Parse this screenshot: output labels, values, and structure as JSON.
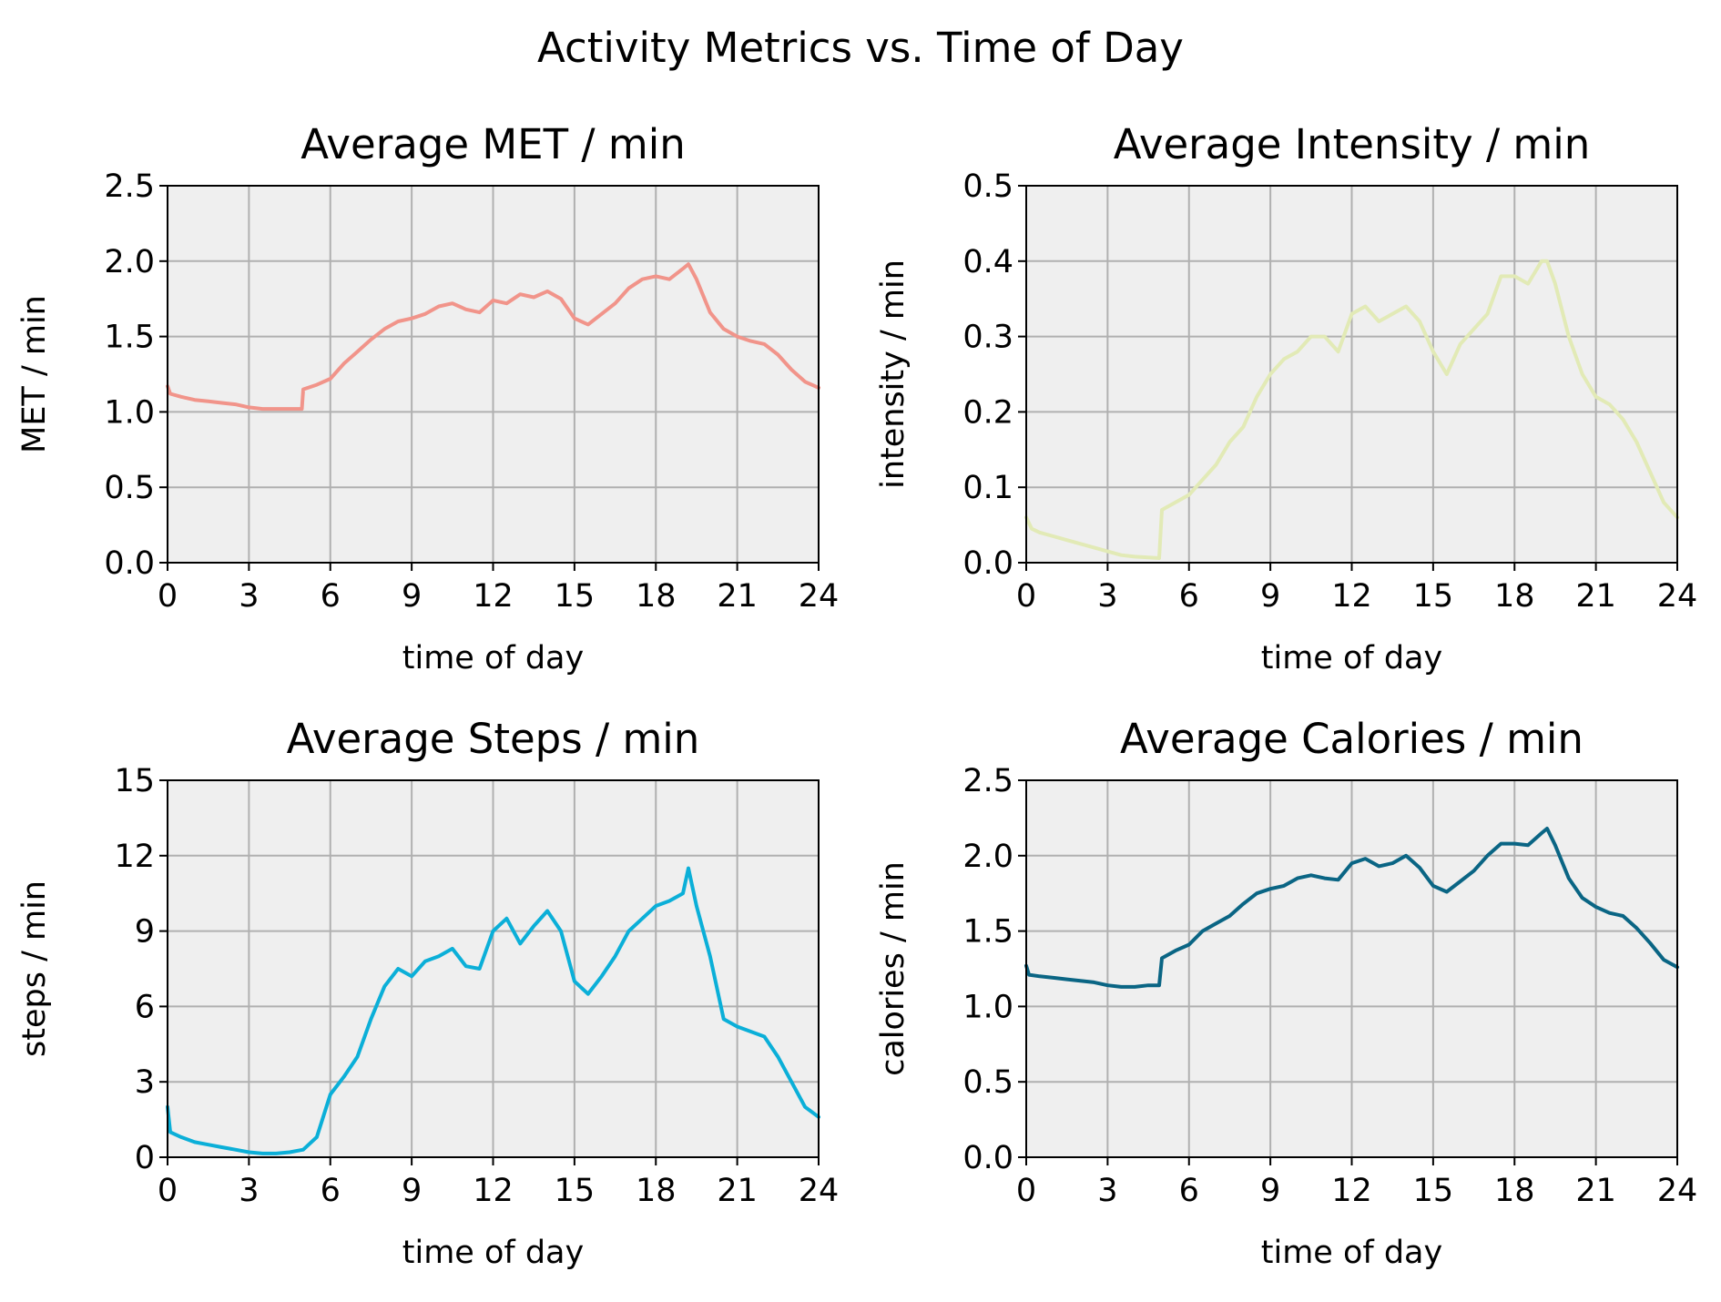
{
  "figure": {
    "suptitle": "Activity Metrics vs. Time of Day"
  },
  "chart_data": [
    {
      "type": "line",
      "title": "Average MET / min",
      "xlabel": "time of day",
      "ylabel": "MET / min",
      "xlim": [
        0,
        24
      ],
      "ylim": [
        0,
        2.5
      ],
      "xticks": [
        "0",
        "3",
        "6",
        "9",
        "12",
        "15",
        "18",
        "21",
        "24"
      ],
      "yticks": [
        "0.0",
        "0.5",
        "1.0",
        "1.5",
        "2.0",
        "2.5"
      ],
      "grid": true,
      "background": "#efefef",
      "color": "#f1948a",
      "series": [
        {
          "x": [
            0,
            0.1,
            0.5,
            1,
            1.5,
            2,
            2.5,
            3,
            3.5,
            4,
            4.5,
            4.95,
            5.0,
            5.5,
            6,
            6.5,
            7,
            7.5,
            8,
            8.5,
            9,
            9.5,
            10,
            10.5,
            11,
            11.5,
            12,
            12.5,
            13,
            13.5,
            14,
            14.5,
            15,
            15.5,
            16,
            16.5,
            17,
            17.5,
            18,
            18.5,
            19,
            19.2,
            19.5,
            20,
            20.5,
            21,
            21.5,
            22,
            22.5,
            23,
            23.5,
            24
          ],
          "y": [
            1.17,
            1.12,
            1.1,
            1.08,
            1.07,
            1.06,
            1.05,
            1.03,
            1.02,
            1.02,
            1.02,
            1.02,
            1.15,
            1.18,
            1.22,
            1.32,
            1.4,
            1.48,
            1.55,
            1.6,
            1.62,
            1.65,
            1.7,
            1.72,
            1.68,
            1.66,
            1.74,
            1.72,
            1.78,
            1.76,
            1.8,
            1.75,
            1.62,
            1.58,
            1.65,
            1.72,
            1.82,
            1.88,
            1.9,
            1.88,
            1.95,
            1.98,
            1.88,
            1.66,
            1.55,
            1.5,
            1.47,
            1.45,
            1.38,
            1.28,
            1.2,
            1.16
          ]
        }
      ]
    },
    {
      "type": "line",
      "title": "Average Intensity / min",
      "xlabel": "time of day",
      "ylabel": "intensity / min",
      "xlim": [
        0,
        24
      ],
      "ylim": [
        0,
        0.5
      ],
      "xticks": [
        "0",
        "3",
        "6",
        "9",
        "12",
        "15",
        "18",
        "21",
        "24"
      ],
      "yticks": [
        "0.0",
        "0.1",
        "0.2",
        "0.3",
        "0.4",
        "0.5"
      ],
      "grid": true,
      "background": "#efefef",
      "color": "#e2eab6",
      "series": [
        {
          "x": [
            0,
            0.2,
            0.5,
            1,
            1.5,
            2,
            2.5,
            3,
            3.5,
            4,
            4.5,
            4.9,
            5.0,
            5.5,
            6,
            6.5,
            7,
            7.5,
            8,
            8.5,
            9,
            9.5,
            10,
            10.5,
            11,
            11.5,
            12,
            12.5,
            13,
            13.5,
            14,
            14.5,
            15,
            15.5,
            16,
            16.5,
            17,
            17.5,
            18,
            18.5,
            19,
            19.2,
            19.5,
            20,
            20.5,
            21,
            21.5,
            22,
            22.5,
            23,
            23.5,
            24
          ],
          "y": [
            0.06,
            0.045,
            0.04,
            0.035,
            0.03,
            0.025,
            0.02,
            0.015,
            0.01,
            0.008,
            0.007,
            0.006,
            0.07,
            0.08,
            0.09,
            0.11,
            0.13,
            0.16,
            0.18,
            0.22,
            0.25,
            0.27,
            0.28,
            0.3,
            0.3,
            0.28,
            0.33,
            0.34,
            0.32,
            0.33,
            0.34,
            0.32,
            0.28,
            0.25,
            0.29,
            0.31,
            0.33,
            0.38,
            0.38,
            0.37,
            0.4,
            0.4,
            0.37,
            0.3,
            0.25,
            0.22,
            0.21,
            0.19,
            0.16,
            0.12,
            0.08,
            0.06
          ]
        }
      ]
    },
    {
      "type": "line",
      "title": "Average Steps / min",
      "xlabel": "time of day",
      "ylabel": "steps / min",
      "xlim": [
        0,
        24
      ],
      "ylim": [
        0,
        15
      ],
      "xticks": [
        "0",
        "3",
        "6",
        "9",
        "12",
        "15",
        "18",
        "21",
        "24"
      ],
      "yticks": [
        "0",
        "3",
        "6",
        "9",
        "12",
        "15"
      ],
      "grid": true,
      "background": "#efefef",
      "color": "#0bafd8",
      "series": [
        {
          "x": [
            0,
            0.1,
            0.5,
            1,
            1.5,
            2,
            2.5,
            3,
            3.5,
            4,
            4.5,
            5,
            5.5,
            6,
            6.5,
            7,
            7.5,
            8,
            8.5,
            9,
            9.5,
            10,
            10.5,
            11,
            11.5,
            12,
            12.5,
            13,
            13.5,
            14,
            14.5,
            15,
            15.5,
            16,
            16.5,
            17,
            17.5,
            18,
            18.5,
            19,
            19.2,
            19.5,
            20,
            20.5,
            21,
            21.5,
            22,
            22.5,
            23,
            23.5,
            24
          ],
          "y": [
            2.0,
            1.0,
            0.8,
            0.6,
            0.5,
            0.4,
            0.3,
            0.2,
            0.15,
            0.15,
            0.2,
            0.3,
            0.8,
            2.5,
            3.2,
            4.0,
            5.5,
            6.8,
            7.5,
            7.2,
            7.8,
            8.0,
            8.3,
            7.6,
            7.5,
            9.0,
            9.5,
            8.5,
            9.2,
            9.8,
            9.0,
            7.0,
            6.5,
            7.2,
            8.0,
            9.0,
            9.5,
            10.0,
            10.2,
            10.5,
            11.5,
            10.0,
            8.0,
            5.5,
            5.2,
            5.0,
            4.8,
            4.0,
            3.0,
            2.0,
            1.6
          ]
        }
      ]
    },
    {
      "type": "line",
      "title": "Average Calories / min",
      "xlabel": "time of day",
      "ylabel": "calories / min",
      "xlim": [
        0,
        24
      ],
      "ylim": [
        0,
        2.5
      ],
      "xticks": [
        "0",
        "3",
        "6",
        "9",
        "12",
        "15",
        "18",
        "21",
        "24"
      ],
      "yticks": [
        "0.0",
        "0.5",
        "1.0",
        "1.5",
        "2.0",
        "2.5"
      ],
      "grid": true,
      "background": "#efefef",
      "color": "#0a6584",
      "series": [
        {
          "x": [
            0,
            0.1,
            0.5,
            1,
            1.5,
            2,
            2.5,
            3,
            3.5,
            4,
            4.5,
            4.9,
            5.0,
            5.5,
            6,
            6.5,
            7,
            7.5,
            8,
            8.5,
            9,
            9.5,
            10,
            10.5,
            11,
            11.5,
            12,
            12.5,
            13,
            13.5,
            14,
            14.5,
            15,
            15.5,
            16,
            16.5,
            17,
            17.5,
            18,
            18.5,
            19,
            19.2,
            19.5,
            20,
            20.5,
            21,
            21.5,
            22,
            22.5,
            23,
            23.5,
            24
          ],
          "y": [
            1.27,
            1.21,
            1.2,
            1.19,
            1.18,
            1.17,
            1.16,
            1.14,
            1.13,
            1.13,
            1.14,
            1.14,
            1.32,
            1.37,
            1.41,
            1.5,
            1.55,
            1.6,
            1.68,
            1.75,
            1.78,
            1.8,
            1.85,
            1.87,
            1.85,
            1.84,
            1.95,
            1.98,
            1.93,
            1.95,
            2.0,
            1.92,
            1.8,
            1.76,
            1.83,
            1.9,
            2.0,
            2.08,
            2.08,
            2.07,
            2.15,
            2.18,
            2.07,
            1.85,
            1.72,
            1.66,
            1.62,
            1.6,
            1.52,
            1.42,
            1.31,
            1.26
          ]
        }
      ]
    }
  ]
}
